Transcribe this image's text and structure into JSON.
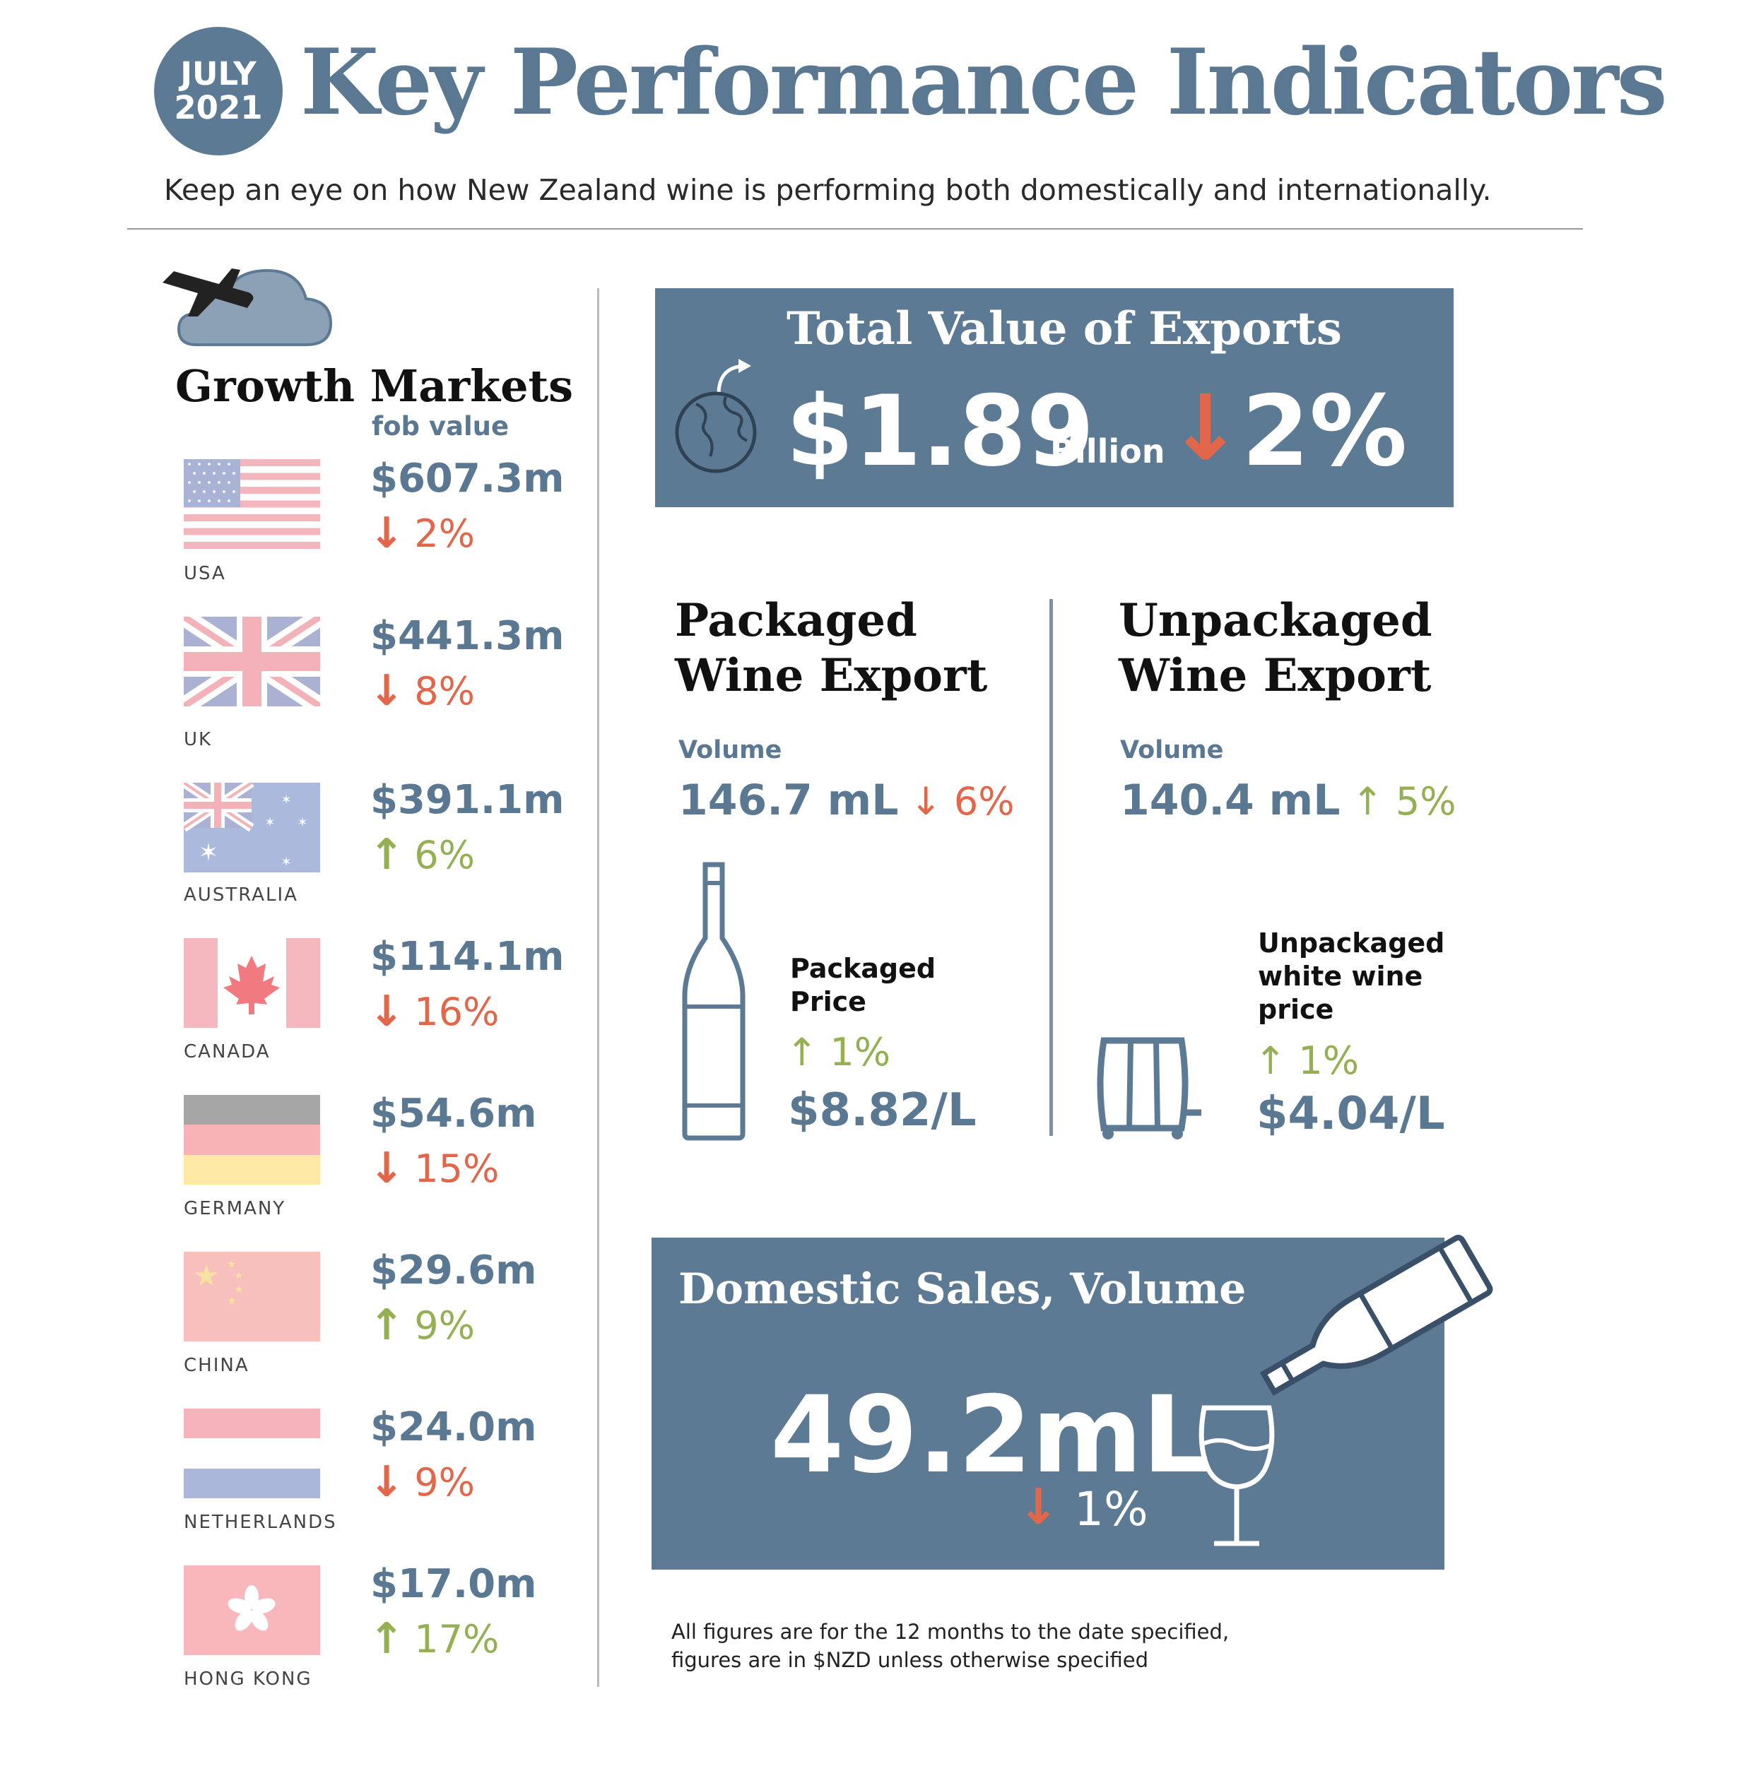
{
  "header": {
    "badge_month": "JULY",
    "badge_year": "2021",
    "title": "Key Performance Indicators",
    "subtitle": "Keep an eye on how New Zealand wine is performing both domestically and internationally."
  },
  "growth_markets": {
    "title": "Growth Markets",
    "value_label": "fob value",
    "markets": [
      {
        "country": "USA",
        "value": "$607.3m",
        "direction": "down",
        "change": "2%"
      },
      {
        "country": "UK",
        "value": "$441.3m",
        "direction": "down",
        "change": "8%"
      },
      {
        "country": "AUSTRALIA",
        "value": "$391.1m",
        "direction": "up",
        "change": "6%"
      },
      {
        "country": "CANADA",
        "value": "$114.1m",
        "direction": "down",
        "change": "16%"
      },
      {
        "country": "GERMANY",
        "value": "$54.6m",
        "direction": "down",
        "change": "15%"
      },
      {
        "country": "CHINA",
        "value": "$29.6m",
        "direction": "up",
        "change": "9%"
      },
      {
        "country": "NETHERLANDS",
        "value": "$24.0m",
        "direction": "down",
        "change": "9%"
      },
      {
        "country": "HONG KONG",
        "value": "$17.0m",
        "direction": "up",
        "change": "17%"
      }
    ]
  },
  "total_exports": {
    "title": "Total Value of Exports",
    "value": "$1.89",
    "unit": "Billion",
    "direction": "down",
    "change": "2%"
  },
  "packaged": {
    "title_line1": "Packaged",
    "title_line2": "Wine Export",
    "volume_label": "Volume",
    "volume": "146.7 mL",
    "volume_direction": "down",
    "volume_change": "6%",
    "price_label_line1": "Packaged",
    "price_label_line2": "Price",
    "price_direction": "up",
    "price_change": "1%",
    "price": "$8.82/L"
  },
  "unpackaged": {
    "title_line1": "Unpackaged",
    "title_line2": "Wine Export",
    "volume_label": "Volume",
    "volume": "140.4 mL",
    "volume_direction": "up",
    "volume_change": "5%",
    "price_label_line1": "Unpackaged",
    "price_label_line2": "white wine",
    "price_label_line3": "price",
    "price_direction": "up",
    "price_change": "1%",
    "price": "$4.04/L"
  },
  "domestic": {
    "title": "Domestic Sales, Volume",
    "value": "49.2mL",
    "direction": "down",
    "change": "1%"
  },
  "footnote": {
    "line1": "All figures are for the 12 months to the date specified,",
    "line2": "figures are in $NZD unless otherwise specified"
  },
  "icons": {
    "down_arrow": "down-arrow-icon",
    "up_arrow": "up-arrow-icon",
    "growth": "airplane-cloud-icon",
    "exports": "globe-icon",
    "packaged": "wine-bottle-icon",
    "unpackaged": "barrel-icon",
    "domestic": "pouring-bottle-glass-icon"
  },
  "colors": {
    "brand_blue": "#5d7a95",
    "down_red": "#e2674a",
    "up_green": "#94b053"
  }
}
